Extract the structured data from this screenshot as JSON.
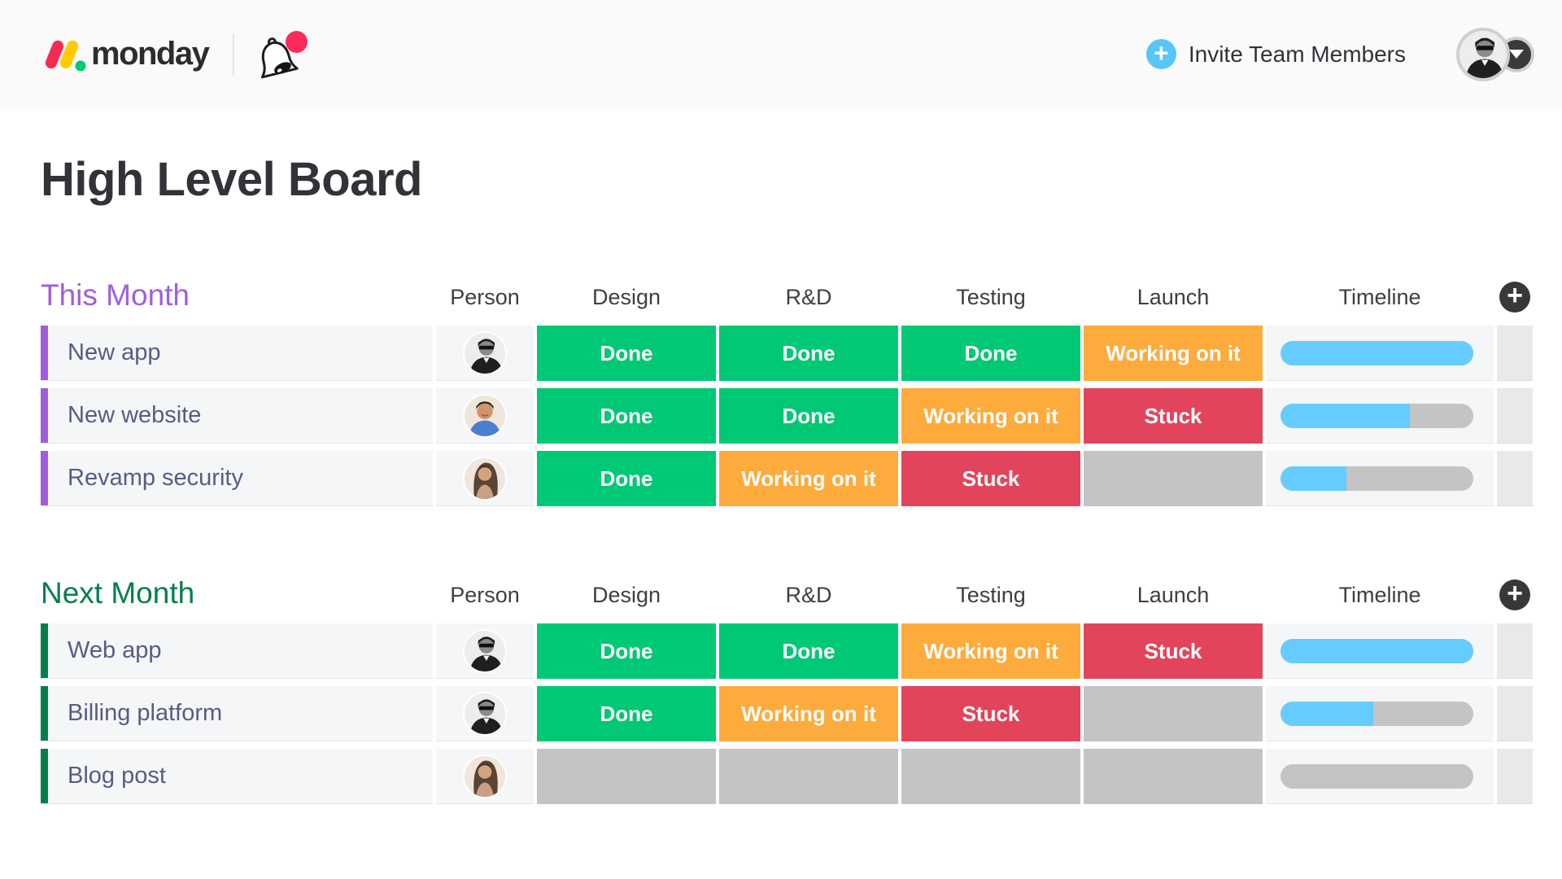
{
  "topbar": {
    "logo_text": "monday",
    "logo_mark_colors": {
      "red": "#f62b54",
      "yellow": "#ffcc00",
      "green": "#00ca72"
    },
    "bell_badge_color": "#fb2b5b",
    "invite_label": "Invite Team Members",
    "invite_plus_color": "#58c5f7",
    "account_avatar": "man-with-sunglasses"
  },
  "page_title": "High Level Board",
  "columns": [
    "Person",
    "Design",
    "R&D",
    "Testing",
    "Launch",
    "Timeline"
  ],
  "status_colors": {
    "done": "#00c875",
    "working": "#fdab3d",
    "stuck": "#e2445c",
    "empty": "#c4c4c4",
    "timeline_fill": "#66ccff",
    "timeline_track": "#c4c4c4"
  },
  "groups": [
    {
      "title": "This Month",
      "color": "#a25ddc",
      "rows": [
        {
          "name": "New app",
          "avatar": "man-in-suit",
          "statuses": [
            {
              "key": "done",
              "label": "Done"
            },
            {
              "key": "done",
              "label": "Done"
            },
            {
              "key": "done",
              "label": "Done"
            },
            {
              "key": "working",
              "label": "Working on it"
            }
          ],
          "timeline_pct": 100
        },
        {
          "name": "New website",
          "avatar": "smiling-man",
          "statuses": [
            {
              "key": "done",
              "label": "Done"
            },
            {
              "key": "done",
              "label": "Done"
            },
            {
              "key": "working",
              "label": "Working on it"
            },
            {
              "key": "stuck",
              "label": "Stuck"
            }
          ],
          "timeline_pct": 67
        },
        {
          "name": "Revamp security",
          "avatar": "woman-long-hair",
          "statuses": [
            {
              "key": "done",
              "label": "Done"
            },
            {
              "key": "working",
              "label": "Working on it"
            },
            {
              "key": "stuck",
              "label": "Stuck"
            },
            {
              "key": "empty",
              "label": ""
            }
          ],
          "timeline_pct": 34
        }
      ]
    },
    {
      "title": "Next Month",
      "color": "#037f4c",
      "rows": [
        {
          "name": "Web app",
          "avatar": "man-in-suit",
          "statuses": [
            {
              "key": "done",
              "label": "Done"
            },
            {
              "key": "done",
              "label": "Done"
            },
            {
              "key": "working",
              "label": "Working on it"
            },
            {
              "key": "stuck",
              "label": "Stuck"
            }
          ],
          "timeline_pct": 100
        },
        {
          "name": "Billing platform",
          "avatar": "man-in-suit",
          "statuses": [
            {
              "key": "done",
              "label": "Done"
            },
            {
              "key": "working",
              "label": "Working on it"
            },
            {
              "key": "stuck",
              "label": "Stuck"
            },
            {
              "key": "empty",
              "label": ""
            }
          ],
          "timeline_pct": 48
        },
        {
          "name": "Blog post",
          "avatar": "woman-long-hair",
          "statuses": [
            {
              "key": "empty",
              "label": ""
            },
            {
              "key": "empty",
              "label": ""
            },
            {
              "key": "empty",
              "label": ""
            },
            {
              "key": "empty",
              "label": ""
            }
          ],
          "timeline_pct": 0
        }
      ]
    }
  ]
}
